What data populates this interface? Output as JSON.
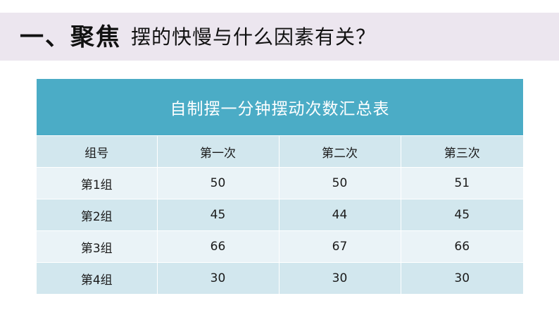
{
  "heading": {
    "prefix": "一、聚焦",
    "question": "摆的快慢与什么因素有关？"
  },
  "table": {
    "caption": "自制摆一分钟摆动次数汇总表",
    "headers": [
      "组号",
      "第一次",
      "第二次",
      "第三次"
    ],
    "rows": [
      [
        "第1组",
        "50",
        "50",
        "51"
      ],
      [
        "第2组",
        "45",
        "44",
        "45"
      ],
      [
        "第3组",
        "66",
        "67",
        "66"
      ],
      [
        "第4组",
        "30",
        "30",
        "30"
      ]
    ]
  },
  "colors": {
    "title_band": "#ece6ef",
    "table_header": "#4bacc6",
    "row_dark": "#d2e7ee",
    "row_light": "#eaf3f7"
  }
}
